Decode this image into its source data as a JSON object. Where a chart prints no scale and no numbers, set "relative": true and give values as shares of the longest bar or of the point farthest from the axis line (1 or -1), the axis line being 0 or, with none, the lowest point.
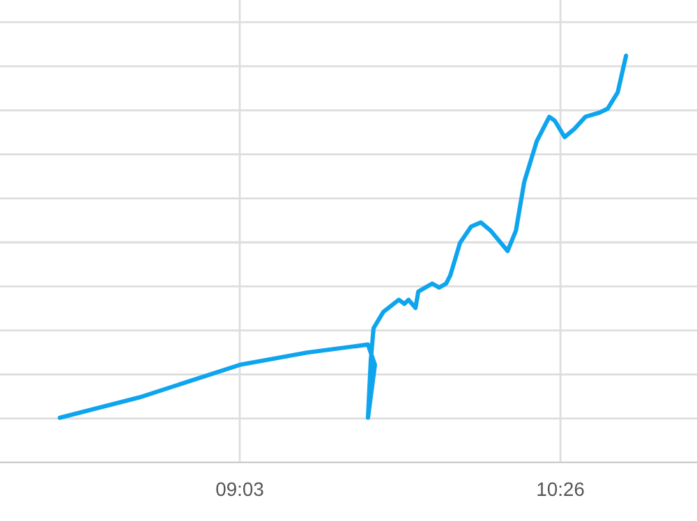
{
  "chart_data": {
    "type": "line",
    "relative": true,
    "grid": true,
    "color": "#0ea5ee",
    "x": [
      8.274,
      8.617,
      9.05,
      9.339,
      9.603,
      9.609,
      9.633,
      9.603,
      9.615,
      9.627,
      9.669,
      9.736,
      9.76,
      9.778,
      9.808,
      9.82,
      9.88,
      9.91,
      9.94,
      9.958,
      10.0,
      10.048,
      10.09,
      10.132,
      10.205,
      10.241,
      10.277,
      10.331,
      10.385,
      10.409,
      10.451,
      10.493,
      10.541,
      10.601,
      10.637,
      10.68,
      10.716
    ],
    "values": [
      0.11,
      0.16,
      0.24,
      0.27,
      0.29,
      0.28,
      0.24,
      0.11,
      0.25,
      0.33,
      0.37,
      0.4,
      0.39,
      0.4,
      0.38,
      0.42,
      0.44,
      0.43,
      0.44,
      0.46,
      0.54,
      0.58,
      0.59,
      0.57,
      0.52,
      0.57,
      0.69,
      0.79,
      0.85,
      0.84,
      0.8,
      0.82,
      0.85,
      0.86,
      0.87,
      0.91,
      1.0
    ],
    "xlim": [
      8.016,
      11.022
    ],
    "xticks": [
      {
        "value": 9.05,
        "label": "09:03"
      },
      {
        "value": 10.433,
        "label": "10:26"
      }
    ],
    "tick_labels": "x"
  }
}
